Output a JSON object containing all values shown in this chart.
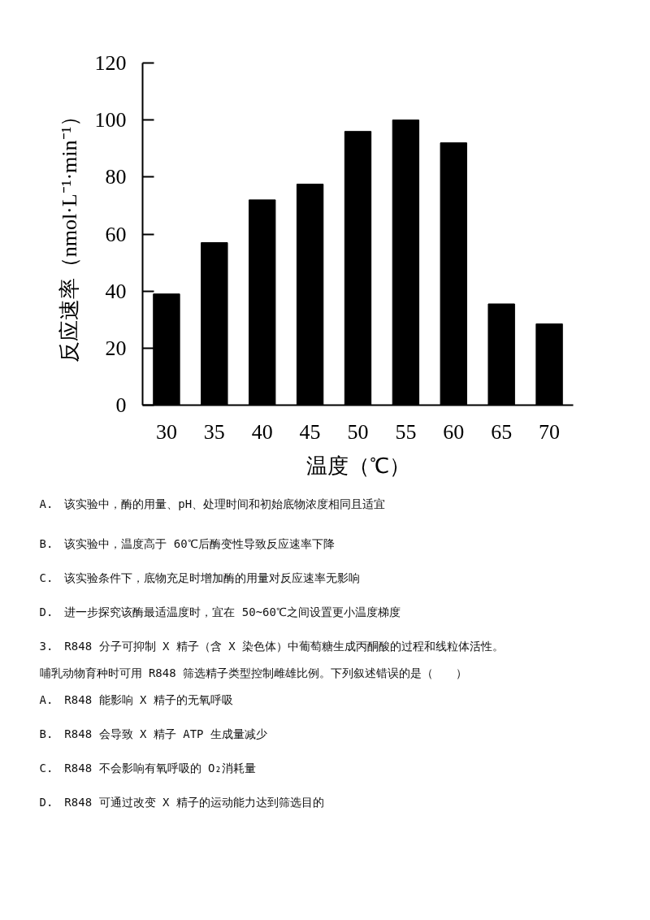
{
  "chart_data": {
    "type": "bar",
    "xlabel": "温度（℃）",
    "ylabel": "反应速率（nmol·L⁻¹·min⁻¹）",
    "categories": [
      "30",
      "35",
      "40",
      "45",
      "50",
      "55",
      "60",
      "65",
      "70"
    ],
    "values": [
      39,
      57,
      72,
      77.5,
      96,
      100,
      92,
      35.5,
      28.5
    ],
    "color": "#000000",
    "ylim": [
      0,
      120
    ],
    "yticks": [
      0,
      20,
      40,
      60,
      80,
      100,
      120
    ],
    "grid": false,
    "annotations": [
      "A.　该实验中，酶的用量、pH、处理时间和初始底物浓度相同且适宜",
      "B.　该实验中，温度高于 60℃后酶变性导致反应速率下降",
      "C.　该实验条件下，底物充足时增加酶的用量对反应速率无影响",
      "D.　进一步探究该酶最适温度时，宜在 50~60℃之间设置更小温度梯度",
      "3.　R848 分子可抑制 X 精子（含 X 染色体）中葡萄糖生成丙酮酸的过程和线粒体活性。哺乳动物育种时可用 R848 筛选精子类型控制雌雄比例。下列叙述错误的是（　　）",
      "A.　R848 能影响 X 精子的无氧呼吸",
      "B.　R848 会导致 X 精子 ATP 生成量减少",
      "C.　R848 不会影响有氧呼吸的 O₂消耗量",
      "D.　R848 可通过改变 X 精子的运动能力达到筛选目的"
    ]
  }
}
